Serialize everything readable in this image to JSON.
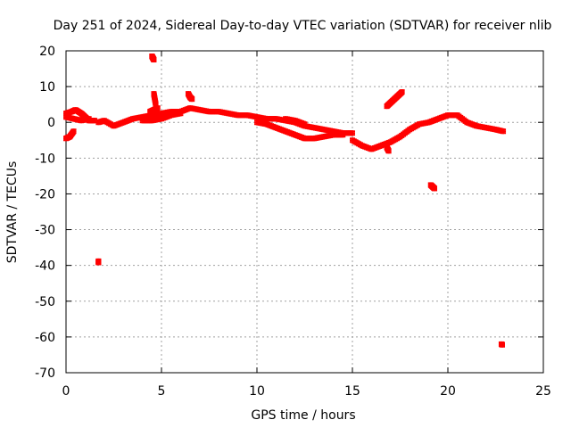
{
  "chart_data": {
    "type": "scatter",
    "title": "Day 251 of 2024, Sidereal Day-to-day VTEC variation (SDTVAR) for receiver nlib",
    "xlabel": "GPS time / hours",
    "ylabel": "SDTVAR / TECUs",
    "xlim": [
      0,
      25
    ],
    "ylim": [
      -70,
      20
    ],
    "xticks": [
      "0",
      "5",
      "10",
      "15",
      "20",
      "25"
    ],
    "yticks": [
      "20",
      "10",
      "0",
      "-10",
      "-20",
      "-30",
      "-40",
      "-50",
      "-60",
      "-70"
    ],
    "grid": true,
    "series": [
      {
        "name": "SDTVAR",
        "color": "#ff0000",
        "marker": "plus",
        "segments": [
          [
            [
              0.0,
              -4.5
            ],
            [
              0.2,
              -4
            ],
            [
              0.4,
              -2.5
            ]
          ],
          [
            [
              0.0,
              2.5
            ],
            [
              0.3,
              3
            ],
            [
              0.5,
              3.5
            ],
            [
              0.8,
              2.5
            ],
            [
              1.0,
              1.5
            ],
            [
              1.2,
              0.5
            ],
            [
              1.5,
              0.5
            ]
          ],
          [
            [
              0.0,
              1.5
            ],
            [
              0.4,
              1.0
            ],
            [
              0.8,
              0.5
            ],
            [
              1.2,
              1.0
            ]
          ],
          [
            [
              1.7,
              0
            ],
            [
              2.0,
              0.5
            ],
            [
              2.5,
              -1
            ],
            [
              3.0,
              0
            ],
            [
              3.5,
              1
            ],
            [
              4.0,
              1.5
            ],
            [
              4.5,
              2
            ],
            [
              5.0,
              2.5
            ],
            [
              5.5,
              3
            ],
            [
              6.0,
              3
            ],
            [
              6.5,
              4
            ],
            [
              7.0,
              3.5
            ],
            [
              7.5,
              3
            ],
            [
              8.0,
              3
            ],
            [
              8.5,
              2.5
            ],
            [
              9.0,
              2
            ],
            [
              9.5,
              2
            ],
            [
              10.0,
              1.5
            ],
            [
              10.5,
              1
            ],
            [
              11.0,
              1
            ],
            [
              11.5,
              0.5
            ],
            [
              12.0,
              0
            ],
            [
              12.5,
              -1
            ],
            [
              13.0,
              -1.5
            ],
            [
              13.5,
              -2
            ],
            [
              14.0,
              -2.5
            ],
            [
              14.5,
              -3
            ],
            [
              15.0,
              -3
            ]
          ],
          [
            [
              4.0,
              0.5
            ],
            [
              4.5,
              0.5
            ],
            [
              5.0,
              1
            ],
            [
              5.5,
              2
            ],
            [
              6.0,
              2.5
            ]
          ],
          [
            [
              4.4,
              3
            ],
            [
              4.6,
              3.5
            ],
            [
              4.8,
              4
            ]
          ],
          [
            [
              4.6,
              8
            ],
            [
              4.65,
              6.5
            ],
            [
              4.7,
              5
            ]
          ],
          [
            [
              6.4,
              8
            ],
            [
              6.5,
              7
            ],
            [
              6.6,
              6.5
            ]
          ],
          [
            [
              10.0,
              0
            ],
            [
              10.5,
              -0.5
            ],
            [
              11.0,
              -1.5
            ],
            [
              11.5,
              -2.5
            ],
            [
              12.0,
              -3.5
            ],
            [
              12.5,
              -4.5
            ],
            [
              13.0,
              -4.5
            ],
            [
              13.5,
              -4
            ],
            [
              14.0,
              -3.5
            ],
            [
              14.5,
              -3.5
            ]
          ],
          [
            [
              11.5,
              1
            ],
            [
              12.0,
              0.5
            ],
            [
              12.5,
              -0.5
            ]
          ],
          [
            [
              15.0,
              -5
            ],
            [
              15.5,
              -6.5
            ],
            [
              16.0,
              -7.5
            ],
            [
              16.5,
              -6.5
            ],
            [
              17.0,
              -5.5
            ],
            [
              17.5,
              -4
            ],
            [
              18.0,
              -2
            ],
            [
              18.5,
              -0.5
            ],
            [
              19.0,
              0
            ],
            [
              19.5,
              1
            ],
            [
              20.0,
              2
            ],
            [
              20.5,
              2
            ],
            [
              21.0,
              0
            ],
            [
              21.5,
              -1
            ],
            [
              22.0,
              -1.5
            ],
            [
              22.5,
              -2
            ],
            [
              22.9,
              -2.5
            ]
          ],
          [
            [
              16.8,
              -7
            ],
            [
              16.9,
              -8
            ]
          ],
          [
            [
              16.8,
              4.5
            ],
            [
              17.0,
              5.5
            ],
            [
              17.2,
              6.5
            ],
            [
              17.4,
              7.5
            ],
            [
              17.6,
              8.5
            ]
          ],
          [
            [
              4.5,
              18.5
            ],
            [
              4.55,
              18
            ],
            [
              4.6,
              17.5
            ]
          ],
          [
            [
              19.1,
              -17.5
            ],
            [
              19.2,
              -18
            ],
            [
              19.3,
              -18.5
            ]
          ],
          [
            [
              1.7,
              -38.8
            ],
            [
              1.7,
              -39.2
            ]
          ],
          [
            [
              22.8,
              -62
            ],
            [
              22.85,
              -62.2
            ]
          ]
        ]
      }
    ]
  }
}
